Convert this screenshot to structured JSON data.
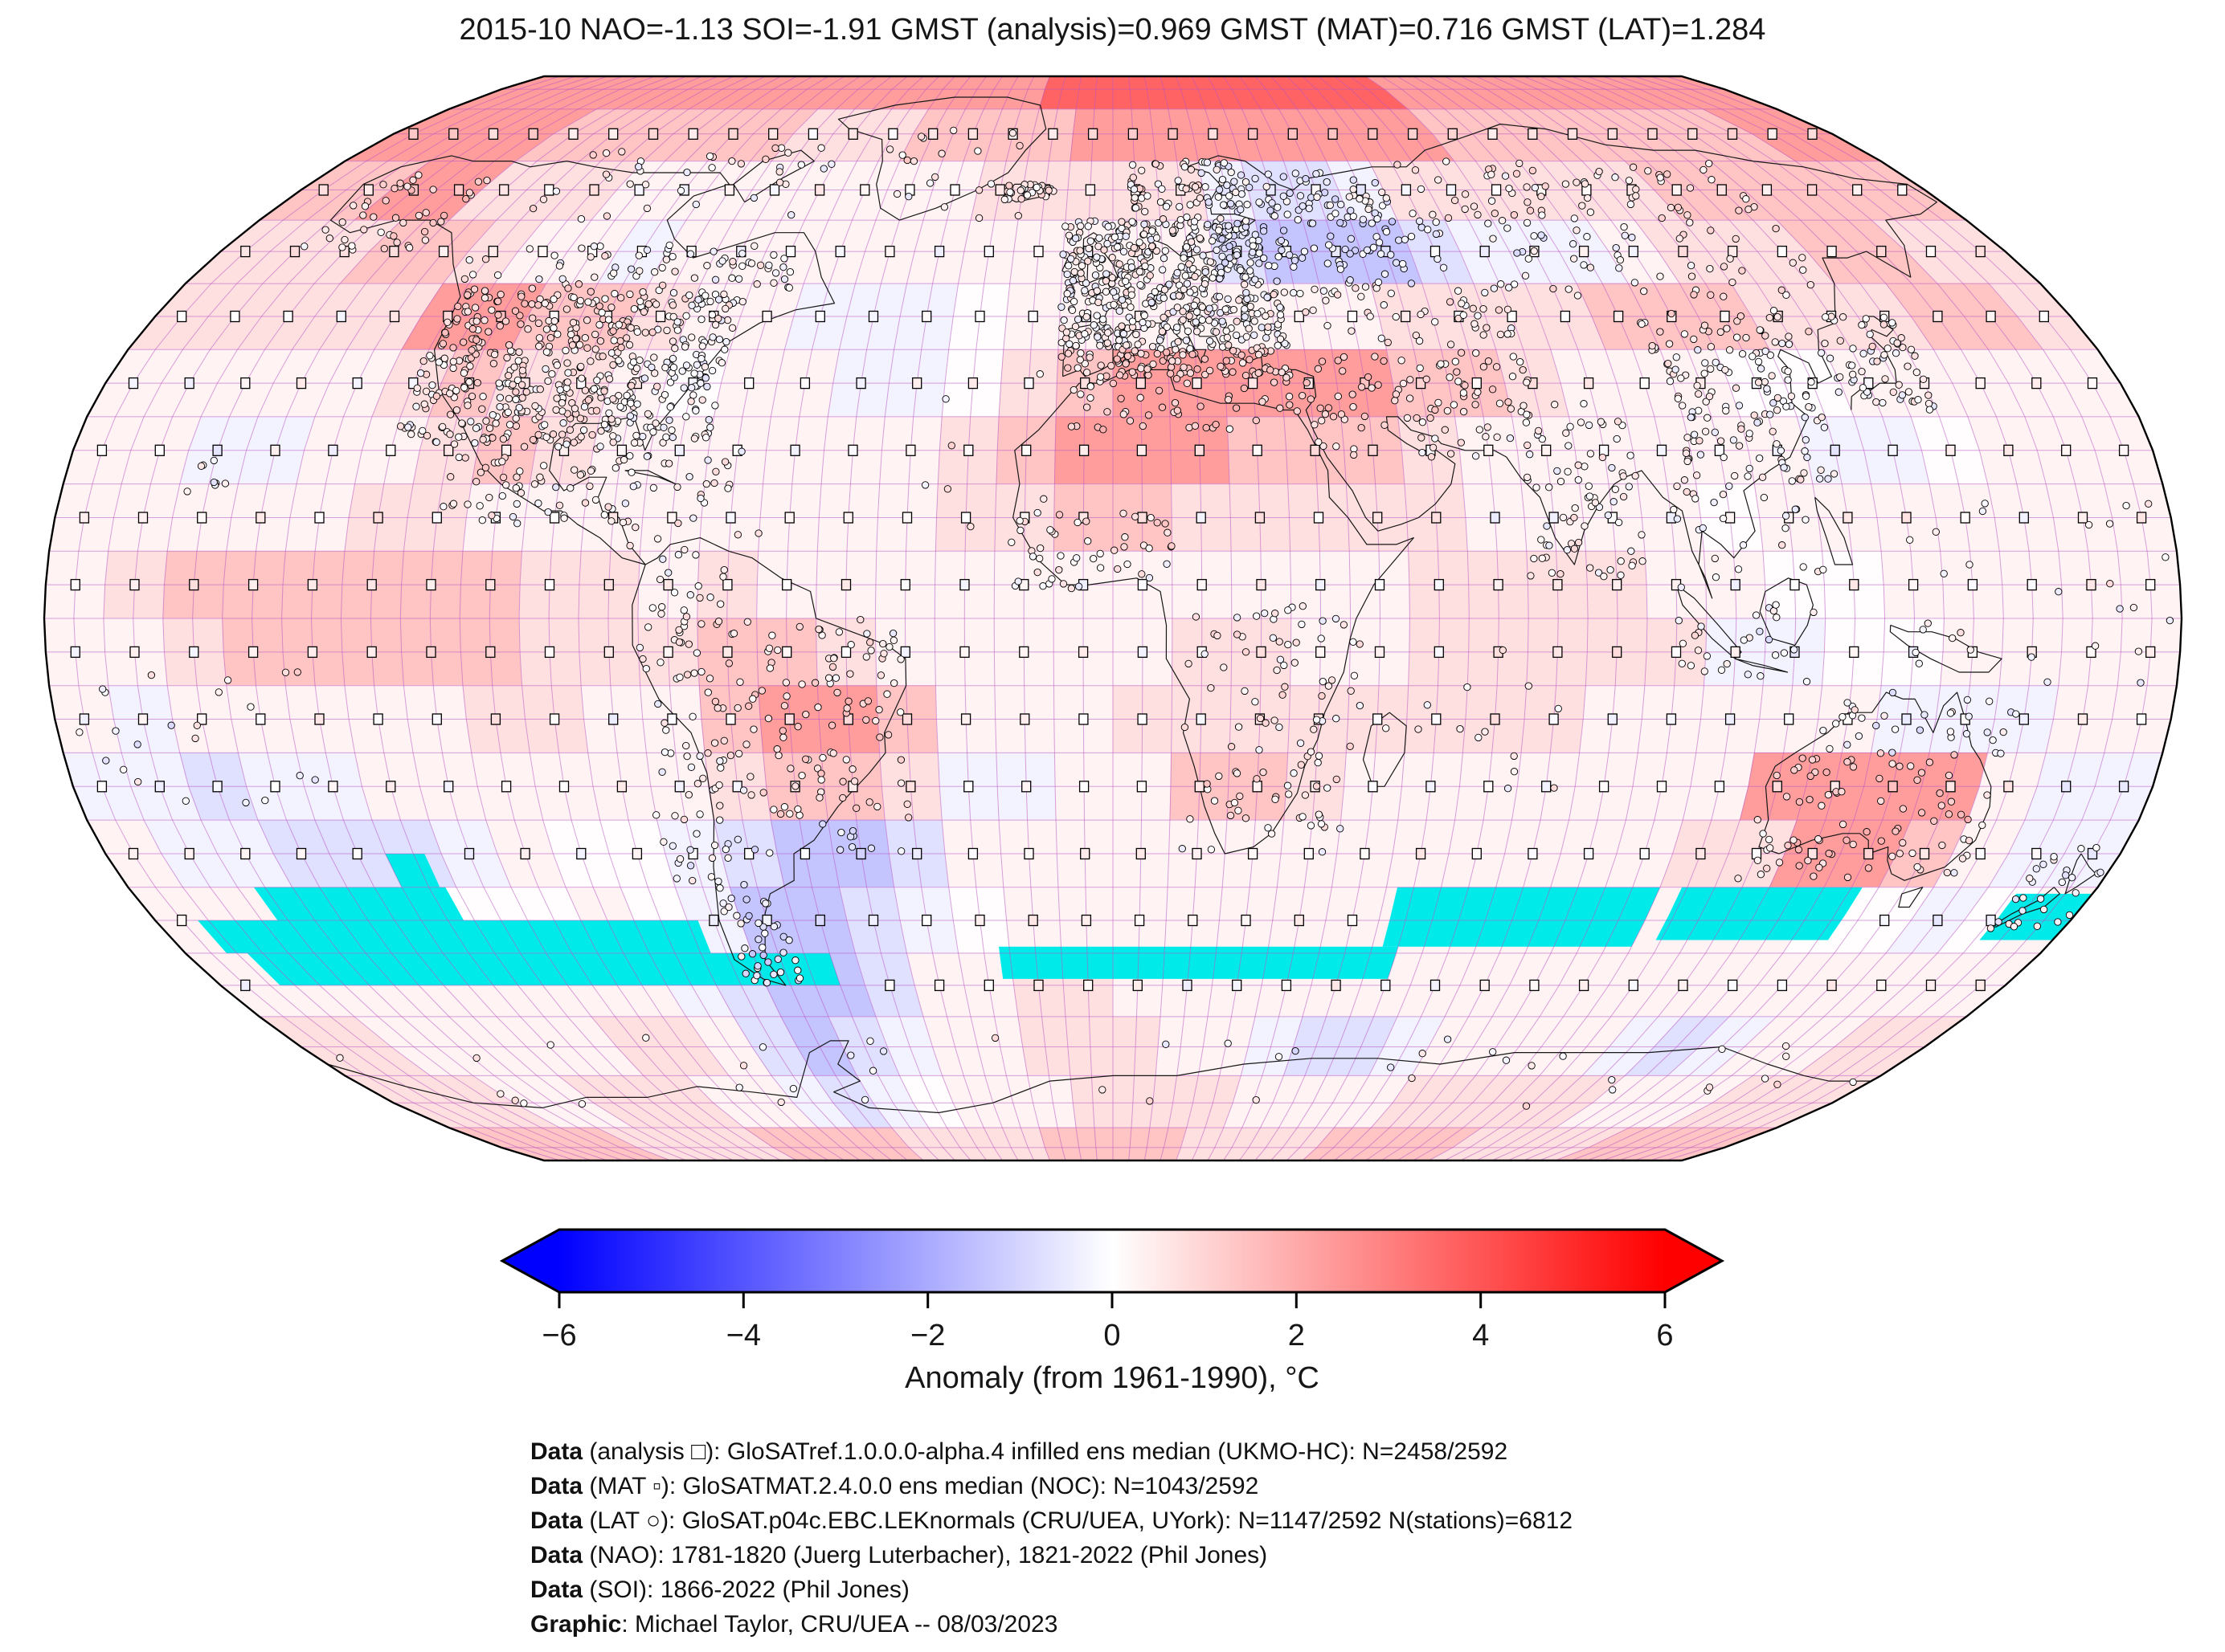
{
  "title": "2015-10 NAO=-1.13 SOI=-1.91 GMST (analysis)=0.969 GMST (MAT)=0.716 GMST (LAT)=1.284",
  "colorbar": {
    "label": "Anomaly (from 1961-1990), °C",
    "ticks": [
      "−6",
      "−4",
      "−2",
      "0",
      "2",
      "4",
      "6"
    ],
    "min": -6,
    "max": 6,
    "left_color": "#0000ff",
    "mid_color": "#ffffff",
    "right_color": "#ff0000"
  },
  "footer": {
    "lines": [
      {
        "b": "Data",
        "t": " (analysis □): GloSATref.1.0.0.0-alpha.4 infilled ens median (UKMO-HC): N=2458/2592"
      },
      {
        "b": "Data",
        "t": " (MAT ▫): GloSATMAT.2.4.0.0 ens median (NOC): N=1043/2592"
      },
      {
        "b": "Data",
        "t": " (LAT ○): GloSAT.p04c.EBC.LEKnormals (CRU/UEA, UYork): N=1147/2592 N(stations)=6812"
      },
      {
        "b": "Data",
        "t": " (NAO): 1781-1820 (Juerg Luterbacher), 1821-2022 (Phil Jones)"
      },
      {
        "b": "Data",
        "t": " (SOI): 1866-2022 (Phil Jones)"
      },
      {
        "b": "Graphic",
        "t": ": Michael Taylor, CRU/UEA -- 08/03/2023"
      }
    ]
  },
  "chart_data": {
    "type": "heatmap",
    "projection": "robinson",
    "date": "2015-10",
    "indices": {
      "NAO": -1.13,
      "SOI": -1.91,
      "GMST_analysis": 0.969,
      "GMST_MAT": 0.716,
      "GMST_LAT": 1.284
    },
    "counts": {
      "analysis": "2458/2592",
      "MAT": "1043/2592",
      "LAT": "1147/2592",
      "stations": 6812
    },
    "units": "°C anomaly from 1961-1990",
    "colorbar": {
      "min": -6,
      "max": 6,
      "ticks": [
        -6,
        -4,
        -2,
        0,
        2,
        4,
        6
      ],
      "label": "Anomaly (from 1961-1990), °C",
      "colormap": "blue-white-red"
    },
    "grid_cell_deg": 10,
    "grid_palette": {
      "0": 0.05,
      "1": 0.3,
      "2": 0.8,
      "3": 1.5,
      "4": 2.5,
      "5": 4.0,
      "a": -0.3,
      "b": -0.8,
      "c": -1.5,
      "d": -2.5
    },
    "grid_rows_order": "lat 90N to 90S, each string lon -180 to 180 in 10 deg steps",
    "grid": [
      "444444444444444455555555554444444444",
      "444433333322233334444444443333333344",
      "33442221111111122222abba222222333333",
      "22233211a11111111111bcccbaaa12223322",
      "222224433211aaa011111112222333222332",
      "1111123221011aa023444443321110011111",
      "11aa11232111111234443332111111aa0111",
      "111112211111111223322222111101111111",
      "123333332212111111111112222110011111",
      "1123333322233211111221122222aa001111",
      "1a11111221134431112222222211111aaa11",
      "aabaa1111112332aa11332111111144441aa",
      "1aabbba100abccb1111111111111224431aa",
      "1111000010accba011111111111111100a01",
      "111111111abccb1122111111111111111111",
      "2211111221bcba1122211abba1111aba1122",
      "2221122211aba01112222111122222111222",
      "333322223333222233332222333322223333"
    ],
    "masked_color": "#00EAEA",
    "masked_regions": [
      [
        -130,
        -123,
        -35,
        -40
      ],
      [
        -157,
        -122,
        -40,
        -45
      ],
      [
        -172,
        -78,
        -45,
        -50
      ],
      [
        -168,
        -55,
        -50,
        -55
      ],
      [
        -22,
        55,
        -49,
        -54
      ],
      [
        52,
        100,
        -40,
        -49
      ],
      [
        104,
        137,
        -40,
        -48
      ],
      [
        166,
        180,
        -41,
        -48
      ]
    ],
    "station_clusters": [
      [
        -125,
        -70,
        26,
        49,
        520
      ],
      [
        -130,
        -60,
        49,
        56,
        70
      ],
      [
        -165,
        -140,
        55,
        68,
        45
      ],
      [
        -115,
        -85,
        14,
        30,
        80
      ],
      [
        -85,
        -60,
        10,
        25,
        35
      ],
      [
        -80,
        -65,
        -40,
        10,
        90
      ],
      [
        -65,
        -35,
        -35,
        0,
        120
      ],
      [
        -73,
        -62,
        -55,
        -38,
        45
      ],
      [
        -10,
        32,
        36,
        60,
        620
      ],
      [
        4,
        30,
        58,
        70,
        100
      ],
      [
        -24,
        -13,
        63,
        66,
        28
      ],
      [
        30,
        60,
        48,
        68,
        130
      ],
      [
        60,
        140,
        48,
        70,
        140
      ],
      [
        35,
        75,
        24,
        48,
        130
      ],
      [
        70,
        90,
        6,
        32,
        80
      ],
      [
        98,
        125,
        20,
        46,
        150
      ],
      [
        129,
        146,
        31,
        45,
        65
      ],
      [
        95,
        120,
        -10,
        20,
        55
      ],
      [
        -8,
        36,
        28,
        37,
        55
      ],
      [
        -17,
        10,
        4,
        16,
        45
      ],
      [
        12,
        42,
        -35,
        2,
        100
      ],
      [
        113,
        154,
        -39,
        -11,
        120
      ],
      [
        166,
        179,
        -47,
        -34,
        28
      ],
      [
        -55,
        -20,
        60,
        77,
        22
      ],
      [
        -125,
        -65,
        60,
        73,
        38
      ],
      [
        -160,
        -152,
        18,
        24,
        8
      ],
      [
        -178,
        -135,
        -28,
        -4,
        22
      ],
      [
        135,
        180,
        -12,
        18,
        28
      ],
      [
        43,
        78,
        -27,
        -4,
        14
      ],
      [
        -35,
        -8,
        8,
        42,
        12
      ],
      [
        -180,
        180,
        -76,
        -63,
        45
      ]
    ]
  }
}
